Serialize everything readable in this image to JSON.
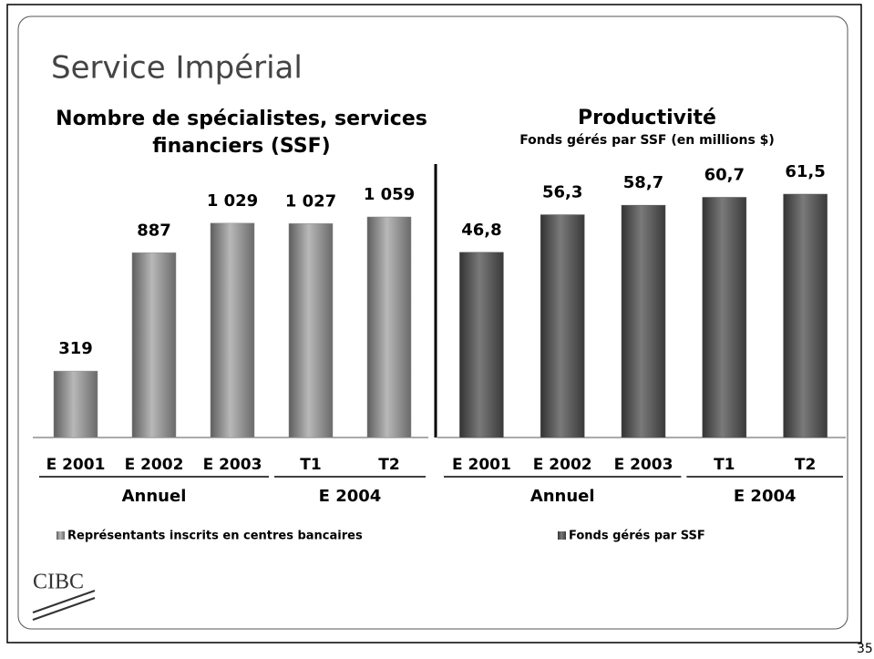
{
  "title": "Service Impérial",
  "page_number": "35",
  "logo": "CIBC",
  "chart_data": [
    {
      "type": "bar",
      "title": "Nombre de spécialistes, services financiers (SSF)",
      "groups": [
        {
          "label": "Annuel",
          "categories": [
            "E 2001",
            "E 2002",
            "E 2003"
          ]
        },
        {
          "label": "E 2004",
          "categories": [
            "T1",
            "T2"
          ]
        }
      ],
      "series": [
        {
          "name": "Représentants inscrits en centres bancaires",
          "color": "#8c8c8c",
          "values": [
            319,
            887,
            1029,
            1027,
            1059
          ],
          "value_labels": [
            "319",
            "887",
            "1 029",
            "1 027",
            "1 059"
          ]
        }
      ]
    },
    {
      "type": "bar",
      "title": "Productivité",
      "subtitle": "Fonds gérés par SSF (en millions $)",
      "groups": [
        {
          "label": "Annuel",
          "categories": [
            "E 2001",
            "E 2002",
            "E 2003"
          ]
        },
        {
          "label": "E 2004",
          "categories": [
            "T1",
            "T2"
          ]
        }
      ],
      "series": [
        {
          "name": "Fonds gérés par SSF",
          "color": "#5a5a5a",
          "values": [
            46.8,
            56.3,
            58.7,
            60.7,
            61.5
          ],
          "value_labels": [
            "46,8",
            "56,3",
            "58,7",
            "60,7",
            "61,5"
          ]
        }
      ]
    }
  ]
}
